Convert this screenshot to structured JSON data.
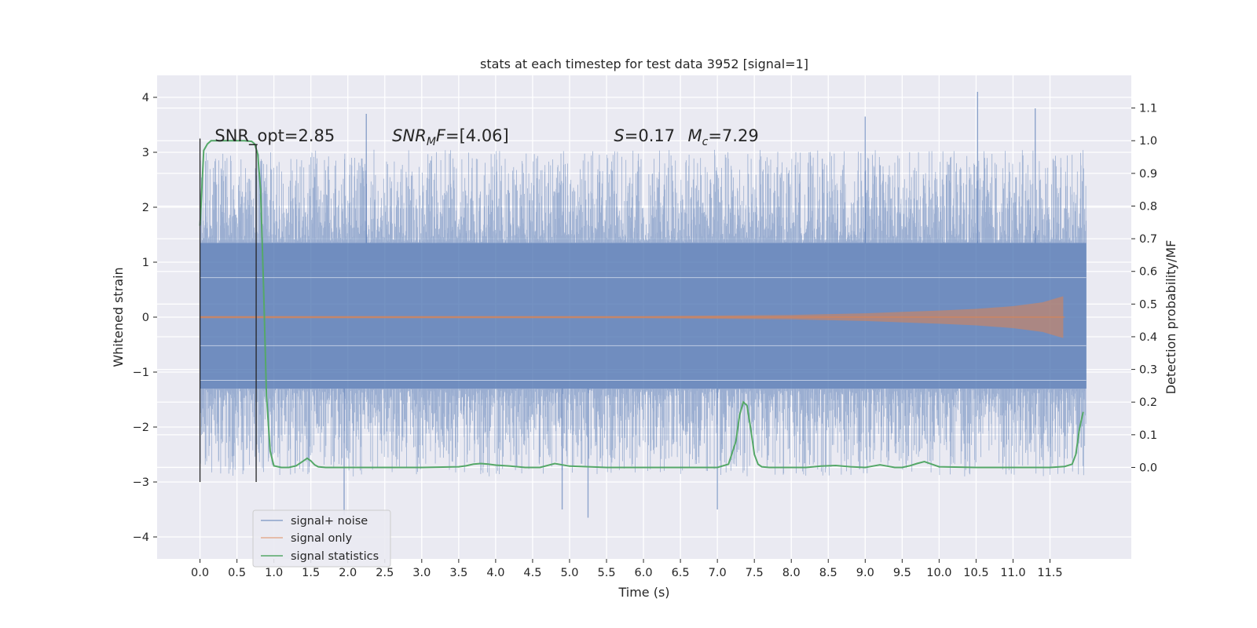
{
  "chart_data": {
    "type": "line",
    "title": "stats at each timestep for test data 3952 [signal=1]",
    "xlabel": "Time (s)",
    "ylabel": "Whitened strain",
    "y2label": "Detection probability/MF",
    "xlim": [
      -0.58,
      12.6
    ],
    "ylim": [
      -4.4,
      4.4
    ],
    "y2lim": [
      -0.28,
      1.2
    ],
    "x_ticks": [
      0.0,
      0.5,
      1.0,
      1.5,
      2.0,
      2.5,
      3.0,
      3.5,
      4.0,
      4.5,
      5.0,
      5.5,
      6.0,
      6.5,
      7.0,
      7.5,
      8.0,
      8.5,
      9.0,
      9.5,
      10.0,
      10.5,
      11.0,
      11.5
    ],
    "x_tick_labels": [
      "0.0",
      "0.5",
      "1.0",
      "1.5",
      "2.0",
      "2.5",
      "3.0",
      "3.5",
      "4.0",
      "4.5",
      "5.0",
      "5.5",
      "6.0",
      "6.5",
      "7.0",
      "7.5",
      "8.0",
      "8.5",
      "9.0",
      "9.5",
      "10.0",
      "10.5",
      "11.0",
      "11.5"
    ],
    "y_ticks": [
      -4,
      -3,
      -2,
      -1,
      0,
      1,
      2,
      3,
      4
    ],
    "y_tick_labels": [
      "−4",
      "−3",
      "−2",
      "−1",
      "0",
      "1",
      "2",
      "3",
      "4"
    ],
    "y2_ticks": [
      0.0,
      0.1,
      0.2,
      0.3,
      0.4,
      0.5,
      0.6,
      0.7,
      0.8,
      0.9,
      1.0,
      1.1
    ],
    "y2_tick_labels": [
      "0.0",
      "0.1",
      "0.2",
      "0.3",
      "0.4",
      "0.5",
      "0.6",
      "0.7",
      "0.8",
      "0.9",
      "1.0",
      "1.1"
    ],
    "grid": true,
    "legend_position": "lower-left",
    "annotations": [
      {
        "text": "SNR_opt=2.85",
        "x": 0.2,
        "y": 3.2
      },
      {
        "text": "SNR_MF=[4.06]",
        "x": 2.6,
        "y": 3.2
      },
      {
        "text": "S=0.17",
        "x": 5.6,
        "y": 3.2
      },
      {
        "text": "M_c=7.29",
        "x": 6.6,
        "y": 3.2
      }
    ],
    "vlines": [
      {
        "x": 0.0,
        "y_from": -3.0,
        "y_to": 3.25
      },
      {
        "x": 0.76,
        "y_from": -3.0,
        "y_to": 3.15
      }
    ],
    "series": [
      {
        "name": "signal+ noise",
        "color": "#4c72b0",
        "axis": "left",
        "x_range": [
          0.0,
          11.99
        ],
        "band": [
          -1.3,
          1.35
        ],
        "notable_peaks": [
          {
            "x": 2.25,
            "y": 3.7
          },
          {
            "x": 9.0,
            "y": 3.65
          },
          {
            "x": 10.52,
            "y": 4.1
          },
          {
            "x": 11.3,
            "y": 3.8
          },
          {
            "x": 1.95,
            "y": -3.6
          },
          {
            "x": 4.9,
            "y": -3.5
          },
          {
            "x": 5.25,
            "y": -3.65
          },
          {
            "x": 7.0,
            "y": -3.5
          }
        ]
      },
      {
        "name": "signal only",
        "color": "#dd8452",
        "axis": "left",
        "x_range": [
          0.0,
          11.7
        ],
        "envelope": [
          [
            0.0,
            0.02
          ],
          [
            6.0,
            0.02
          ],
          [
            8.0,
            0.04
          ],
          [
            9.0,
            0.07
          ],
          [
            10.0,
            0.12
          ],
          [
            10.5,
            0.15
          ],
          [
            11.0,
            0.2
          ],
          [
            11.4,
            0.27
          ],
          [
            11.6,
            0.35
          ],
          [
            11.68,
            0.38
          ]
        ]
      },
      {
        "name": "signal statistics",
        "color": "#55a868",
        "axis": "right",
        "x": [
          0.0,
          0.05,
          0.1,
          0.15,
          0.2,
          0.3,
          0.4,
          0.5,
          0.6,
          0.7,
          0.74,
          0.78,
          0.82,
          0.86,
          0.9,
          0.95,
          1.0,
          1.1,
          1.2,
          1.3,
          1.4,
          1.45,
          1.5,
          1.55,
          1.6,
          1.7,
          1.8,
          2.0,
          2.5,
          3.0,
          3.5,
          3.6,
          3.7,
          3.8,
          3.9,
          4.0,
          4.2,
          4.4,
          4.6,
          4.8,
          5.0,
          5.5,
          6.0,
          6.5,
          7.0,
          7.15,
          7.25,
          7.3,
          7.35,
          7.4,
          7.45,
          7.5,
          7.55,
          7.6,
          7.7,
          7.8,
          8.0,
          8.2,
          8.4,
          8.6,
          8.8,
          9.0,
          9.1,
          9.2,
          9.3,
          9.4,
          9.5,
          9.6,
          9.7,
          9.8,
          9.9,
          10.0,
          10.5,
          11.0,
          11.5,
          11.7,
          11.8,
          11.85,
          11.9,
          11.95
        ],
        "y": [
          0.74,
          0.97,
          0.99,
          1.0,
          1.0,
          1.0,
          1.0,
          1.0,
          1.0,
          0.998,
          0.99,
          0.96,
          0.85,
          0.55,
          0.22,
          0.05,
          0.005,
          0.0,
          0.0,
          0.005,
          0.02,
          0.028,
          0.02,
          0.008,
          0.002,
          0.0,
          0.0,
          0.0,
          0.0,
          0.0,
          0.002,
          0.005,
          0.01,
          0.012,
          0.01,
          0.007,
          0.004,
          0.0,
          0.0,
          0.012,
          0.004,
          0.0,
          0.0,
          0.0,
          0.0,
          0.01,
          0.08,
          0.16,
          0.2,
          0.19,
          0.12,
          0.04,
          0.01,
          0.002,
          0.0,
          0.0,
          0.0,
          0.0,
          0.004,
          0.006,
          0.002,
          0.0,
          0.004,
          0.008,
          0.004,
          0.0,
          0.0,
          0.005,
          0.012,
          0.018,
          0.01,
          0.002,
          0.0,
          0.0,
          0.0,
          0.003,
          0.01,
          0.04,
          0.12,
          0.17
        ]
      }
    ],
    "legend": [
      {
        "label": "signal+ noise",
        "color": "#4c72b0"
      },
      {
        "label": "signal only",
        "color": "#dd8452"
      },
      {
        "label": "signal statistics",
        "color": "#55a868"
      }
    ]
  }
}
